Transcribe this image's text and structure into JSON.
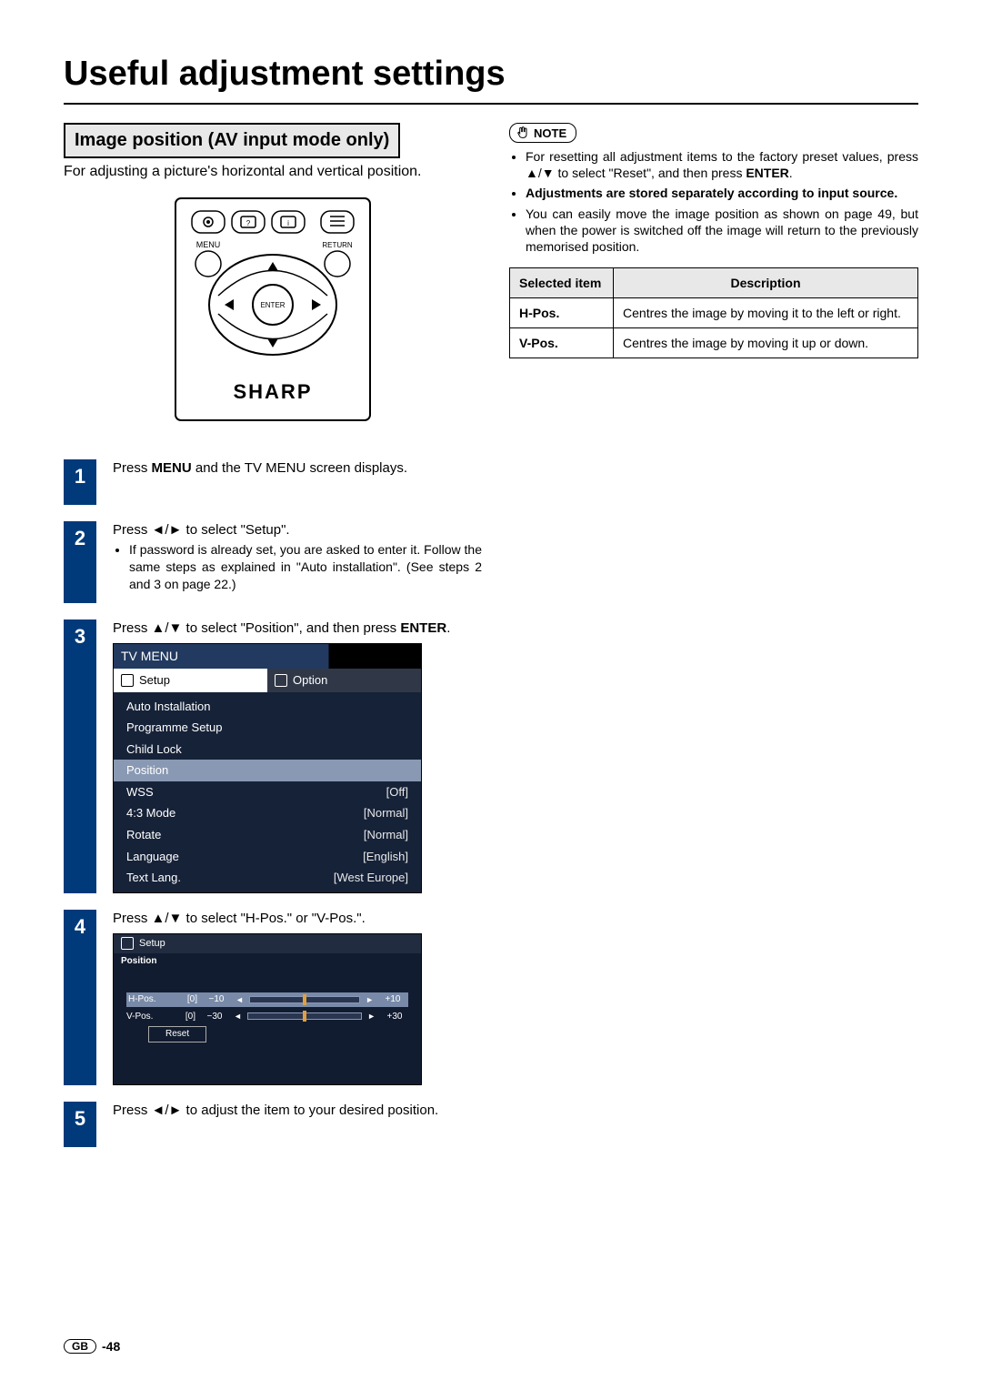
{
  "page": {
    "title": "Useful adjustment settings",
    "section_header": "Image position (AV input mode only)",
    "intro": "For adjusting a picture's horizontal and vertical position.",
    "footer_region": "GB",
    "footer_page": "-48"
  },
  "remote": {
    "brand": "SHARP",
    "menu_label": "MENU",
    "return_label": "RETURN",
    "enter_label": "ENTER"
  },
  "steps": [
    {
      "num": "1",
      "text_pre": "Press ",
      "bold": "MENU",
      "text_post": " and the TV MENU screen displays."
    },
    {
      "num": "2",
      "text_pre": "Press ",
      "arrows": "◄/►",
      "text_post": " to select \"Setup\".",
      "sub": "If password is already set, you are asked to enter it. Follow the same steps as explained in \"Auto installation\". (See steps 2 and 3 on page 22.)"
    },
    {
      "num": "3",
      "text_pre": "Press ",
      "arrows": "▲/▼",
      "text_post": " to select \"Position\", and then press ",
      "bold2": "ENTER",
      "text_post2": "."
    },
    {
      "num": "4",
      "text_pre": "Press ",
      "arrows": "▲/▼",
      "text_post": " to select \"H-Pos.\" or \"V-Pos.\"."
    },
    {
      "num": "5",
      "text_pre": "Press ",
      "arrows": "◄/►",
      "text_post": " to adjust the item to your desired position."
    }
  ],
  "tv_menu": {
    "title": "TV MENU",
    "tabs": [
      {
        "label": "Setup",
        "active": true
      },
      {
        "label": "Option",
        "active": false
      }
    ],
    "rows": [
      {
        "label": "Auto Installation",
        "value": ""
      },
      {
        "label": "Programme Setup",
        "value": ""
      },
      {
        "label": "Child Lock",
        "value": ""
      },
      {
        "label": "Position",
        "value": "",
        "selected": true
      },
      {
        "label": "WSS",
        "value": "[Off]"
      },
      {
        "label": "4:3 Mode",
        "value": "[Normal]"
      },
      {
        "label": "Rotate",
        "value": "[Normal]"
      },
      {
        "label": "Language",
        "value": "[English]"
      },
      {
        "label": "Text Lang.",
        "value": "[West Europe]"
      }
    ],
    "panel_bg": "#162238",
    "selected_bg": "#8a99b3"
  },
  "pos_menu": {
    "header": "Setup",
    "title": "Position",
    "rows": [
      {
        "label": "H-Pos.",
        "value": "[0]",
        "min": "−10",
        "max": "+10",
        "selected": true
      },
      {
        "label": "V-Pos.",
        "value": "[0]",
        "min": "−30",
        "max": "+30",
        "selected": false
      }
    ],
    "reset": "Reset",
    "panel_bg": "#121c30",
    "handle_color": "#e0a040"
  },
  "notes": {
    "badge": "NOTE",
    "items": [
      {
        "text_pre": "For resetting all adjustment items to the factory preset values, press ",
        "arrows": "▲/▼",
        "text_mid": " to select \"Reset\", and then press ",
        "bold": "ENTER",
        "text_post": "."
      },
      {
        "bold_full": "Adjustments are stored separately according to input source."
      },
      {
        "text_plain": "You can easily move the image position as shown on page 49, but when the power is switched off the image will return to the previously memorised position."
      }
    ]
  },
  "table": {
    "head": [
      "Selected item",
      "Description"
    ],
    "rows": [
      [
        "H-Pos.",
        "Centres the image by moving it to the left or right."
      ],
      [
        "V-Pos.",
        "Centres the image by moving it up or down."
      ]
    ]
  }
}
